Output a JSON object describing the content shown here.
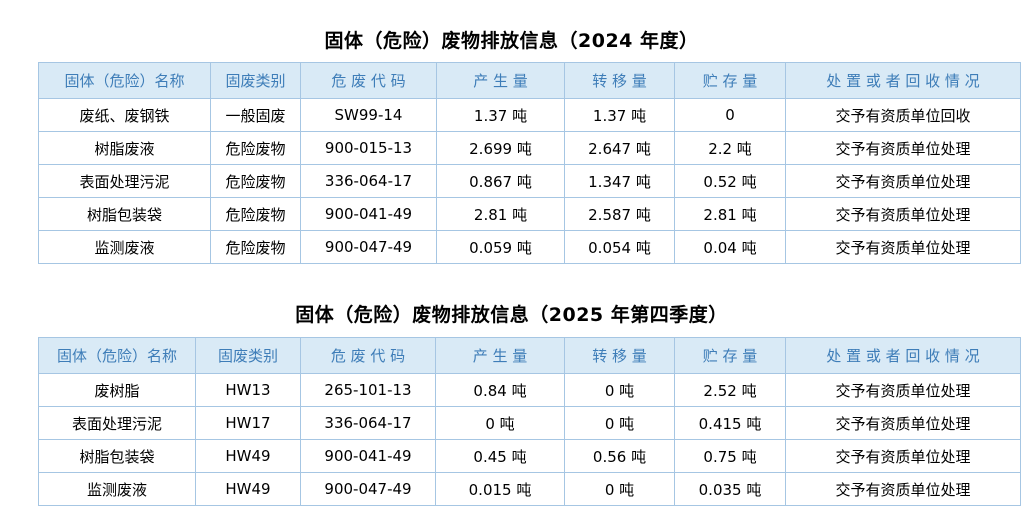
{
  "colors": {
    "header_background": "#d9eaf6",
    "header_text": "#3e7db8",
    "border": "#a6c6e3",
    "cell_text": "#000000",
    "title_text": "#000000",
    "page_background": "#ffffff"
  },
  "tables": [
    {
      "title": "固体（危险）废物排放信息（2024 年度）",
      "headers": [
        "固体（危险）名称",
        "固废类别",
        "危 废 代 码",
        "产 生 量",
        "转 移 量",
        "贮 存 量",
        "处 置 或 者 回 收 情 况"
      ],
      "rows": [
        [
          "废纸、废钢铁",
          "一般固废",
          "SW99-14",
          "1.37 吨",
          "1.37 吨",
          "0",
          "交予有资质单位回收"
        ],
        [
          "树脂废液",
          "危险废物",
          "900-015-13",
          "2.699 吨",
          "2.647 吨",
          "2.2 吨",
          "交予有资质单位处理"
        ],
        [
          "表面处理污泥",
          "危险废物",
          "336-064-17",
          "0.867 吨",
          "1.347 吨",
          "0.52 吨",
          "交予有资质单位处理"
        ],
        [
          "树脂包装袋",
          "危险废物",
          "900-041-49",
          "2.81 吨",
          "2.587 吨",
          "2.81 吨",
          "交予有资质单位处理"
        ],
        [
          "监测废液",
          "危险废物",
          "900-047-49",
          "0.059 吨",
          "0.054 吨",
          "0.04 吨",
          "交予有资质单位处理"
        ]
      ]
    },
    {
      "title": "固体（危险）废物排放信息（2025 年第四季度）",
      "headers": [
        "固体（危险）名称",
        "固废类别",
        "危 废 代 码",
        "产 生 量",
        "转 移 量",
        "贮 存 量",
        "处 置 或 者 回 收 情 况"
      ],
      "rows": [
        [
          "废树脂",
          "HW13",
          "265-101-13",
          "0.84 吨",
          "0 吨",
          "2.52 吨",
          "交予有资质单位处理"
        ],
        [
          "表面处理污泥",
          "HW17",
          "336-064-17",
          "0 吨",
          "0 吨",
          "0.415 吨",
          "交予有资质单位处理"
        ],
        [
          "树脂包装袋",
          "HW49",
          "900-041-49",
          "0.45 吨",
          "0.56 吨",
          "0.75 吨",
          "交予有资质单位处理"
        ],
        [
          "监测废液",
          "HW49",
          "900-047-49",
          "0.015 吨",
          "0 吨",
          "0.035 吨",
          "交予有资质单位处理"
        ]
      ]
    }
  ]
}
